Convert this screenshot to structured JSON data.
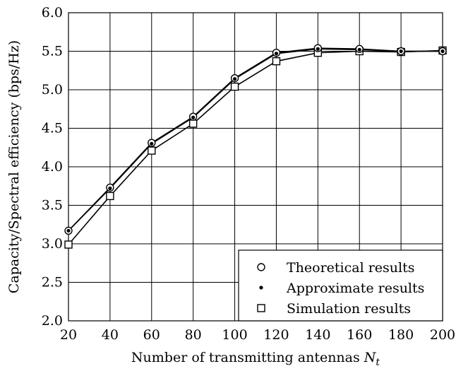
{
  "chart_data": {
    "type": "line",
    "title": "",
    "xlabel": "Number of transmitting antennas",
    "xlabel_symbol": "N",
    "xlabel_subscript": "t",
    "ylabel": "Capacity/Spectral efficiency (bps/Hz)",
    "xlim": [
      20,
      200
    ],
    "ylim": [
      2.0,
      6.0
    ],
    "xticks": [
      "20",
      "40",
      "60",
      "80",
      "100",
      "120",
      "140",
      "160",
      "180",
      "200"
    ],
    "yticks": [
      "2.0",
      "2.5",
      "3.0",
      "3.5",
      "4.0",
      "4.5",
      "5.0",
      "5.5",
      "6.0"
    ],
    "grid": true,
    "legend_position": "bottom-right",
    "x": [
      20,
      40,
      60,
      80,
      100,
      120,
      140,
      160,
      180,
      200
    ],
    "series": [
      {
        "name": "Theoretical results",
        "marker": "circle-open",
        "color": "#000000",
        "values": [
          3.17,
          3.73,
          4.31,
          4.65,
          5.15,
          5.48,
          5.54,
          5.53,
          5.5,
          5.5
        ]
      },
      {
        "name": "Approximate results",
        "marker": "dot-filled",
        "color": "#000000",
        "values": [
          3.17,
          3.72,
          4.3,
          4.64,
          5.14,
          5.47,
          5.53,
          5.52,
          5.5,
          5.5
        ]
      },
      {
        "name": "Simulation results",
        "marker": "square-open",
        "color": "#000000",
        "values": [
          2.99,
          3.62,
          4.21,
          4.56,
          5.04,
          5.37,
          5.48,
          5.5,
          5.49,
          5.51
        ]
      }
    ]
  }
}
